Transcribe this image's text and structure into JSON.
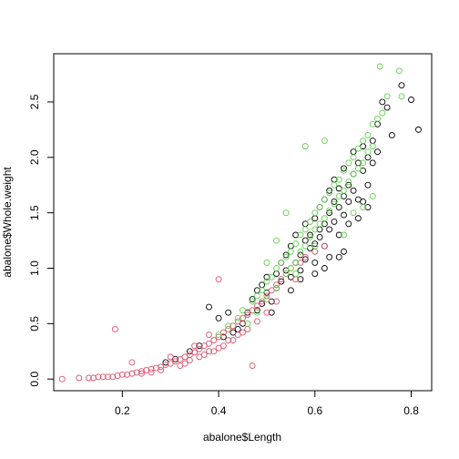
{
  "chart_data": {
    "type": "scatter",
    "title": "",
    "xlabel": "abalone$Length",
    "ylabel": "abalone$Whole.weight",
    "xlim": [
      0.0575,
      0.8425
    ],
    "ylim": [
      -0.105,
      2.935
    ],
    "x_ticks": [
      0.2,
      0.4,
      0.6,
      0.8
    ],
    "y_ticks": [
      0.0,
      0.5,
      1.0,
      1.5,
      2.0,
      2.5
    ],
    "x_tick_labels": [
      "0.2",
      "0.4",
      "0.6",
      "0.8"
    ],
    "y_tick_labels": [
      "0.0",
      "0.5",
      "1.0",
      "1.5",
      "2.0",
      "2.5"
    ],
    "grid": false,
    "legend": "none",
    "marker": "open-circle",
    "series": [
      {
        "color": "#000000",
        "points": [
          [
            0.38,
            0.65
          ],
          [
            0.4,
            0.55
          ],
          [
            0.42,
            0.6
          ],
          [
            0.44,
            0.45
          ],
          [
            0.45,
            0.5
          ],
          [
            0.46,
            0.6
          ],
          [
            0.47,
            0.72
          ],
          [
            0.48,
            0.62
          ],
          [
            0.49,
            0.85
          ],
          [
            0.5,
            0.78
          ],
          [
            0.5,
            0.92
          ],
          [
            0.51,
            0.7
          ],
          [
            0.52,
            0.95
          ],
          [
            0.52,
            0.82
          ],
          [
            0.53,
            1.05
          ],
          [
            0.53,
            0.88
          ],
          [
            0.54,
            0.98
          ],
          [
            0.54,
            1.12
          ],
          [
            0.55,
            0.92
          ],
          [
            0.55,
            1.2
          ],
          [
            0.56,
            1.05
          ],
          [
            0.56,
            1.3
          ],
          [
            0.57,
            1.12
          ],
          [
            0.57,
            0.98
          ],
          [
            0.58,
            1.25
          ],
          [
            0.58,
            1.4
          ],
          [
            0.58,
            1.08
          ],
          [
            0.59,
            1.3
          ],
          [
            0.59,
            1.18
          ],
          [
            0.6,
            1.45
          ],
          [
            0.6,
            1.22
          ],
          [
            0.6,
            1.05
          ],
          [
            0.61,
            1.35
          ],
          [
            0.61,
            1.55
          ],
          [
            0.61,
            1.28
          ],
          [
            0.62,
            1.4
          ],
          [
            0.62,
            1.62
          ],
          [
            0.62,
            1.2
          ],
          [
            0.63,
            1.5
          ],
          [
            0.63,
            1.7
          ],
          [
            0.63,
            1.35
          ],
          [
            0.64,
            1.6
          ],
          [
            0.64,
            1.42
          ],
          [
            0.64,
            1.8
          ],
          [
            0.65,
            1.55
          ],
          [
            0.65,
            1.72
          ],
          [
            0.65,
            1.3
          ],
          [
            0.66,
            1.65
          ],
          [
            0.66,
            1.9
          ],
          [
            0.66,
            1.48
          ],
          [
            0.67,
            1.75
          ],
          [
            0.67,
            1.6
          ],
          [
            0.68,
            1.85
          ],
          [
            0.68,
            1.7
          ],
          [
            0.68,
            2.05
          ],
          [
            0.69,
            1.95
          ],
          [
            0.69,
            1.62
          ],
          [
            0.7,
            2.1
          ],
          [
            0.7,
            1.88
          ],
          [
            0.71,
            2.0
          ],
          [
            0.71,
            1.75
          ],
          [
            0.72,
            2.15
          ],
          [
            0.72,
            1.95
          ],
          [
            0.73,
            2.3
          ],
          [
            0.73,
            2.05
          ],
          [
            0.74,
            2.5
          ],
          [
            0.75,
            2.45
          ],
          [
            0.76,
            2.2
          ],
          [
            0.78,
            2.65
          ],
          [
            0.8,
            2.52
          ],
          [
            0.815,
            2.25
          ],
          [
            0.62,
            1.0
          ],
          [
            0.6,
            0.95
          ],
          [
            0.57,
            0.9
          ],
          [
            0.55,
            0.8
          ],
          [
            0.48,
            0.8
          ],
          [
            0.49,
            0.68
          ],
          [
            0.51,
            0.6
          ],
          [
            0.43,
            0.42
          ],
          [
            0.41,
            0.38
          ],
          [
            0.36,
            0.3
          ],
          [
            0.34,
            0.25
          ],
          [
            0.31,
            0.18
          ],
          [
            0.29,
            0.15
          ],
          [
            0.65,
            1.1
          ],
          [
            0.67,
            1.4
          ],
          [
            0.69,
            1.45
          ],
          [
            0.7,
            1.6
          ],
          [
            0.66,
            1.15
          ],
          [
            0.63,
            1.1
          ],
          [
            0.71,
            1.55
          ]
        ]
      },
      {
        "color": "#DF536B",
        "points": [
          [
            0.075,
            0.0
          ],
          [
            0.11,
            0.01
          ],
          [
            0.13,
            0.01
          ],
          [
            0.14,
            0.01
          ],
          [
            0.15,
            0.02
          ],
          [
            0.16,
            0.02
          ],
          [
            0.17,
            0.02
          ],
          [
            0.18,
            0.02
          ],
          [
            0.185,
            0.45
          ],
          [
            0.19,
            0.03
          ],
          [
            0.2,
            0.04
          ],
          [
            0.21,
            0.04
          ],
          [
            0.22,
            0.05
          ],
          [
            0.22,
            0.15
          ],
          [
            0.23,
            0.06
          ],
          [
            0.24,
            0.07
          ],
          [
            0.25,
            0.08
          ],
          [
            0.26,
            0.09
          ],
          [
            0.27,
            0.1
          ],
          [
            0.28,
            0.11
          ],
          [
            0.29,
            0.13
          ],
          [
            0.3,
            0.14
          ],
          [
            0.3,
            0.2
          ],
          [
            0.31,
            0.16
          ],
          [
            0.32,
            0.18
          ],
          [
            0.33,
            0.2
          ],
          [
            0.33,
            0.14
          ],
          [
            0.34,
            0.22
          ],
          [
            0.35,
            0.24
          ],
          [
            0.35,
            0.3
          ],
          [
            0.36,
            0.27
          ],
          [
            0.37,
            0.3
          ],
          [
            0.37,
            0.22
          ],
          [
            0.38,
            0.32
          ],
          [
            0.38,
            0.4
          ],
          [
            0.39,
            0.35
          ],
          [
            0.39,
            0.25
          ],
          [
            0.4,
            0.38
          ],
          [
            0.4,
            0.9
          ],
          [
            0.41,
            0.42
          ],
          [
            0.41,
            0.3
          ],
          [
            0.42,
            0.45
          ],
          [
            0.42,
            0.35
          ],
          [
            0.43,
            0.48
          ],
          [
            0.44,
            0.52
          ],
          [
            0.44,
            0.4
          ],
          [
            0.45,
            0.55
          ],
          [
            0.46,
            0.58
          ],
          [
            0.46,
            0.45
          ],
          [
            0.47,
            0.62
          ],
          [
            0.47,
            0.12
          ],
          [
            0.48,
            0.66
          ],
          [
            0.48,
            0.52
          ],
          [
            0.49,
            0.7
          ],
          [
            0.5,
            0.75
          ],
          [
            0.5,
            0.6
          ],
          [
            0.51,
            0.8
          ],
          [
            0.52,
            0.85
          ],
          [
            0.52,
            0.7
          ],
          [
            0.53,
            0.9
          ],
          [
            0.54,
            0.95
          ],
          [
            0.55,
            1.0
          ],
          [
            0.56,
            0.9
          ],
          [
            0.57,
            1.05
          ],
          [
            0.58,
            1.1
          ],
          [
            0.6,
            1.15
          ],
          [
            0.62,
            1.2
          ],
          [
            0.36,
            0.2
          ],
          [
            0.34,
            0.17
          ],
          [
            0.32,
            0.12
          ],
          [
            0.28,
            0.08
          ],
          [
            0.26,
            0.06
          ],
          [
            0.24,
            0.05
          ],
          [
            0.43,
            0.35
          ],
          [
            0.45,
            0.42
          ],
          [
            0.38,
            0.25
          ],
          [
            0.4,
            0.28
          ]
        ]
      },
      {
        "color": "#61D04F",
        "points": [
          [
            0.4,
            0.4
          ],
          [
            0.42,
            0.48
          ],
          [
            0.44,
            0.55
          ],
          [
            0.45,
            0.62
          ],
          [
            0.46,
            0.5
          ],
          [
            0.47,
            0.7
          ],
          [
            0.48,
            0.75
          ],
          [
            0.49,
            0.8
          ],
          [
            0.5,
            0.88
          ],
          [
            0.5,
            0.72
          ],
          [
            0.51,
            0.92
          ],
          [
            0.52,
            1.0
          ],
          [
            0.52,
            0.82
          ],
          [
            0.53,
            1.05
          ],
          [
            0.54,
            1.1
          ],
          [
            0.54,
            0.95
          ],
          [
            0.55,
            1.15
          ],
          [
            0.55,
            1.0
          ],
          [
            0.56,
            1.22
          ],
          [
            0.56,
            1.05
          ],
          [
            0.57,
            1.3
          ],
          [
            0.57,
            1.15
          ],
          [
            0.58,
            1.35
          ],
          [
            0.58,
            1.2
          ],
          [
            0.59,
            1.42
          ],
          [
            0.59,
            1.28
          ],
          [
            0.6,
            1.5
          ],
          [
            0.6,
            1.35
          ],
          [
            0.61,
            1.55
          ],
          [
            0.61,
            1.4
          ],
          [
            0.62,
            1.62
          ],
          [
            0.62,
            1.45
          ],
          [
            0.63,
            1.68
          ],
          [
            0.63,
            1.52
          ],
          [
            0.64,
            1.75
          ],
          [
            0.64,
            1.58
          ],
          [
            0.65,
            1.8
          ],
          [
            0.65,
            1.65
          ],
          [
            0.66,
            1.88
          ],
          [
            0.66,
            1.7
          ],
          [
            0.67,
            1.95
          ],
          [
            0.67,
            1.78
          ],
          [
            0.68,
            2.0
          ],
          [
            0.68,
            1.85
          ],
          [
            0.69,
            2.08
          ],
          [
            0.69,
            1.9
          ],
          [
            0.7,
            2.15
          ],
          [
            0.7,
            1.95
          ],
          [
            0.71,
            2.2
          ],
          [
            0.71,
            2.05
          ],
          [
            0.72,
            2.3
          ],
          [
            0.72,
            2.1
          ],
          [
            0.73,
            2.35
          ],
          [
            0.735,
            2.82
          ],
          [
            0.74,
            2.4
          ],
          [
            0.75,
            2.55
          ],
          [
            0.775,
            2.78
          ],
          [
            0.78,
            2.55
          ],
          [
            0.58,
            2.1
          ],
          [
            0.62,
            2.15
          ],
          [
            0.54,
            1.5
          ],
          [
            0.52,
            1.25
          ],
          [
            0.5,
            1.05
          ],
          [
            0.66,
            1.3
          ],
          [
            0.68,
            1.5
          ],
          [
            0.7,
            1.55
          ],
          [
            0.72,
            1.65
          ],
          [
            0.48,
            0.6
          ],
          [
            0.56,
            0.95
          ],
          [
            0.6,
            1.2
          ]
        ]
      }
    ]
  }
}
